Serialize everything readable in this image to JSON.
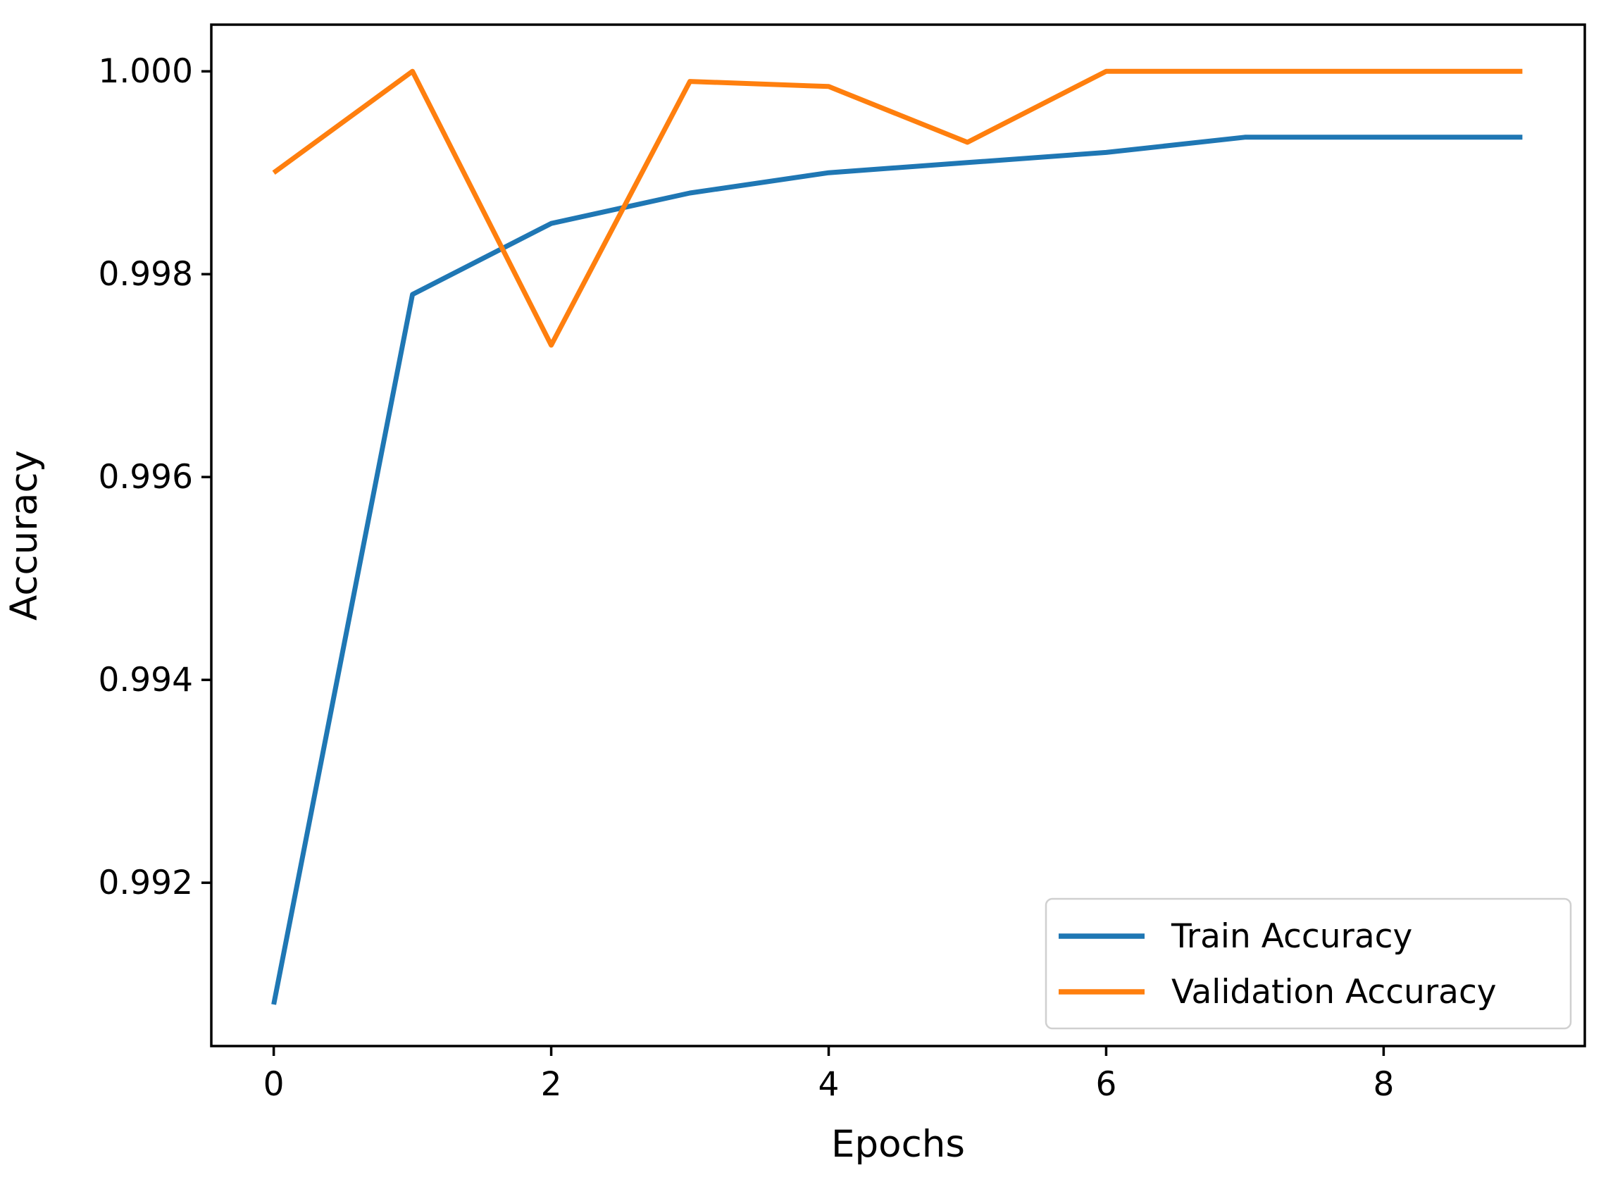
{
  "chart_data": {
    "type": "line",
    "title": "",
    "xlabel": "Epochs",
    "ylabel": "Accuracy",
    "x": [
      0,
      1,
      2,
      3,
      4,
      5,
      6,
      7,
      8,
      9
    ],
    "series": [
      {
        "name": "Train Accuracy",
        "color": "#1f77b4",
        "values": [
          0.9908,
          0.9978,
          0.9985,
          0.9988,
          0.999,
          0.9991,
          0.9992,
          0.99935,
          0.99935,
          0.99935
        ]
      },
      {
        "name": "Validation Accuracy",
        "color": "#ff7f0e",
        "values": [
          0.999,
          1.0,
          0.9973,
          0.9999,
          0.99985,
          0.9993,
          1.0,
          1.0,
          1.0,
          1.0
        ]
      }
    ],
    "xlim": [
      -0.45,
      9.45
    ],
    "ylim": [
      0.99039,
      1.00046
    ],
    "xticks": [
      0,
      2,
      4,
      6,
      8
    ],
    "yticks": [
      0.992,
      0.994,
      0.996,
      0.998,
      1.0
    ],
    "ytick_decimals": 3,
    "grid": false,
    "legend": {
      "position": "lower right",
      "entries": [
        "Train Accuracy",
        "Validation Accuracy"
      ]
    }
  },
  "colors": {
    "background": "#ffffff",
    "axis": "#000000",
    "legend_border": "#d0d0d0",
    "legend_background": "#ffffff"
  }
}
